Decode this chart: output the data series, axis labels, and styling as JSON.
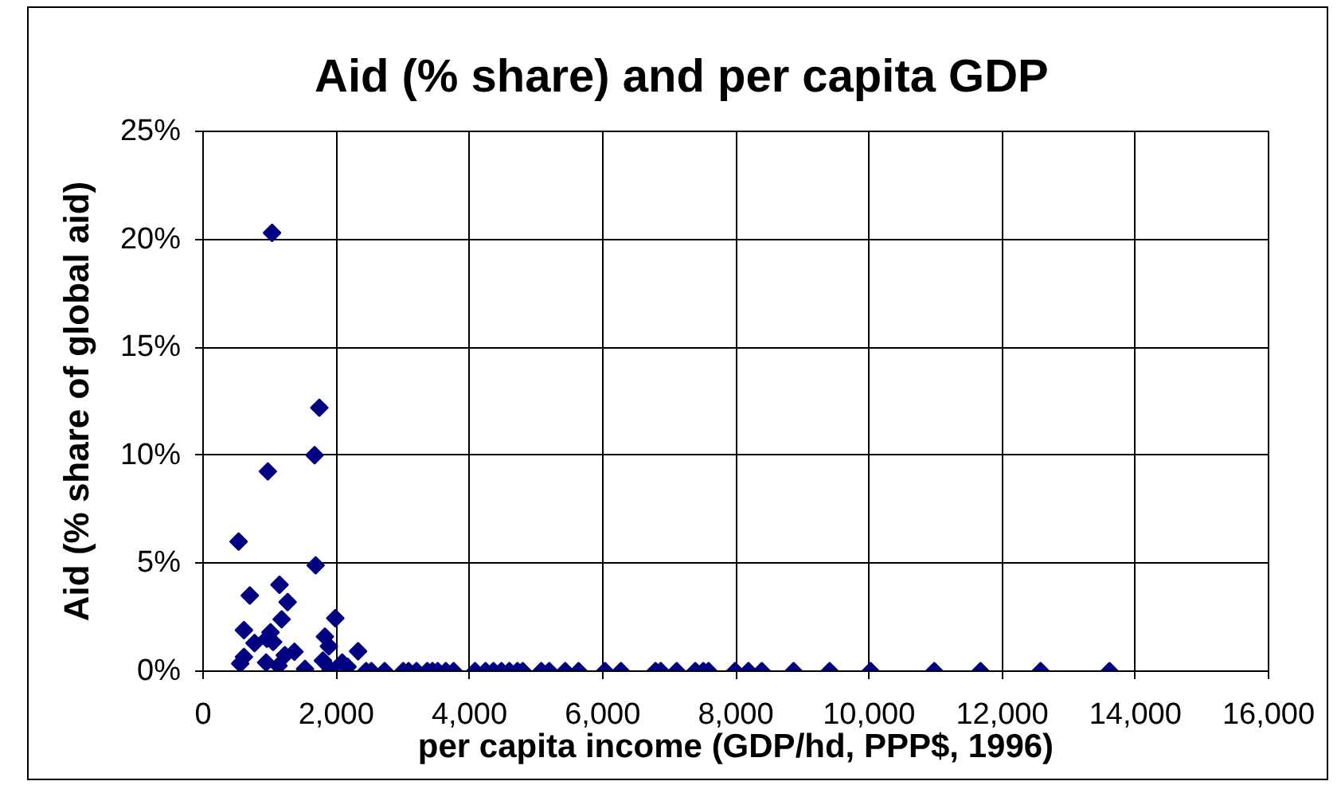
{
  "chart_data": {
    "type": "scatter",
    "title": "Aid (% share) and per capita GDP",
    "xlabel": "per capita income (GDP/hd, PPP$, 1996)",
    "ylabel": "Aid (% share of global aid)",
    "x": [
      534,
      558,
      614,
      614,
      702,
      773,
      947,
      957,
      973,
      1013,
      1036,
      1053,
      1132,
      1148,
      1180,
      1228,
      1270,
      1372,
      1531,
      1675,
      1691,
      1746,
      1800,
      1830,
      1890,
      1914,
      1986,
      2089,
      2169,
      2328,
      2448,
      2528,
      2727,
      3006,
      3086,
      3206,
      3366,
      3445,
      3524,
      3645,
      3763,
      4084,
      4242,
      4361,
      4481,
      4600,
      4720,
      4801,
      5079,
      5199,
      5438,
      5639,
      6036,
      6275,
      6794,
      6873,
      7112,
      7392,
      7512,
      7591,
      7990,
      8189,
      8390,
      8868,
      9409,
      10024,
      10981,
      11675,
      12577,
      13612
    ],
    "values": [
      6.0,
      0.35,
      0.66,
      1.9,
      3.5,
      1.3,
      0.4,
      1.5,
      9.25,
      1.8,
      20.3,
      1.35,
      0.25,
      4.0,
      2.4,
      0.74,
      3.2,
      0.9,
      0.1,
      10.0,
      4.9,
      12.2,
      0.49,
      1.6,
      1.15,
      0.07,
      2.45,
      0.4,
      0.2,
      0.92,
      0,
      0,
      0,
      0,
      0,
      0,
      0,
      0,
      0,
      0,
      0,
      0,
      0,
      0,
      0,
      0,
      0,
      0,
      0,
      0,
      0,
      0,
      0,
      0,
      0,
      0,
      0,
      0,
      0,
      0,
      0,
      0,
      0,
      0,
      0,
      0,
      0,
      0,
      0,
      0
    ],
    "color": "#000080",
    "marker": "diamond",
    "grid": true,
    "xlim": [
      0,
      16000
    ],
    "ylim": [
      0,
      25
    ],
    "xticks": [
      0,
      {
        "value": 2000,
        "label": "2,000"
      },
      {
        "value": 4000,
        "label": "4,000"
      },
      {
        "value": 6000,
        "label": "6,000"
      },
      {
        "value": 8000,
        "label": "8,000"
      },
      {
        "value": 10000,
        "label": "10,000"
      },
      {
        "value": 12000,
        "label": "12,000"
      },
      {
        "value": 14000,
        "label": "14,000"
      },
      {
        "value": 16000,
        "label": "16,000"
      }
    ],
    "yticks": [
      {
        "value": 0,
        "label": "0%"
      },
      {
        "value": 5,
        "label": "5%"
      },
      {
        "value": 10,
        "label": "10%"
      },
      {
        "value": 15,
        "label": "15%"
      },
      {
        "value": 20,
        "label": "20%"
      },
      {
        "value": 25,
        "label": "25%"
      }
    ]
  }
}
